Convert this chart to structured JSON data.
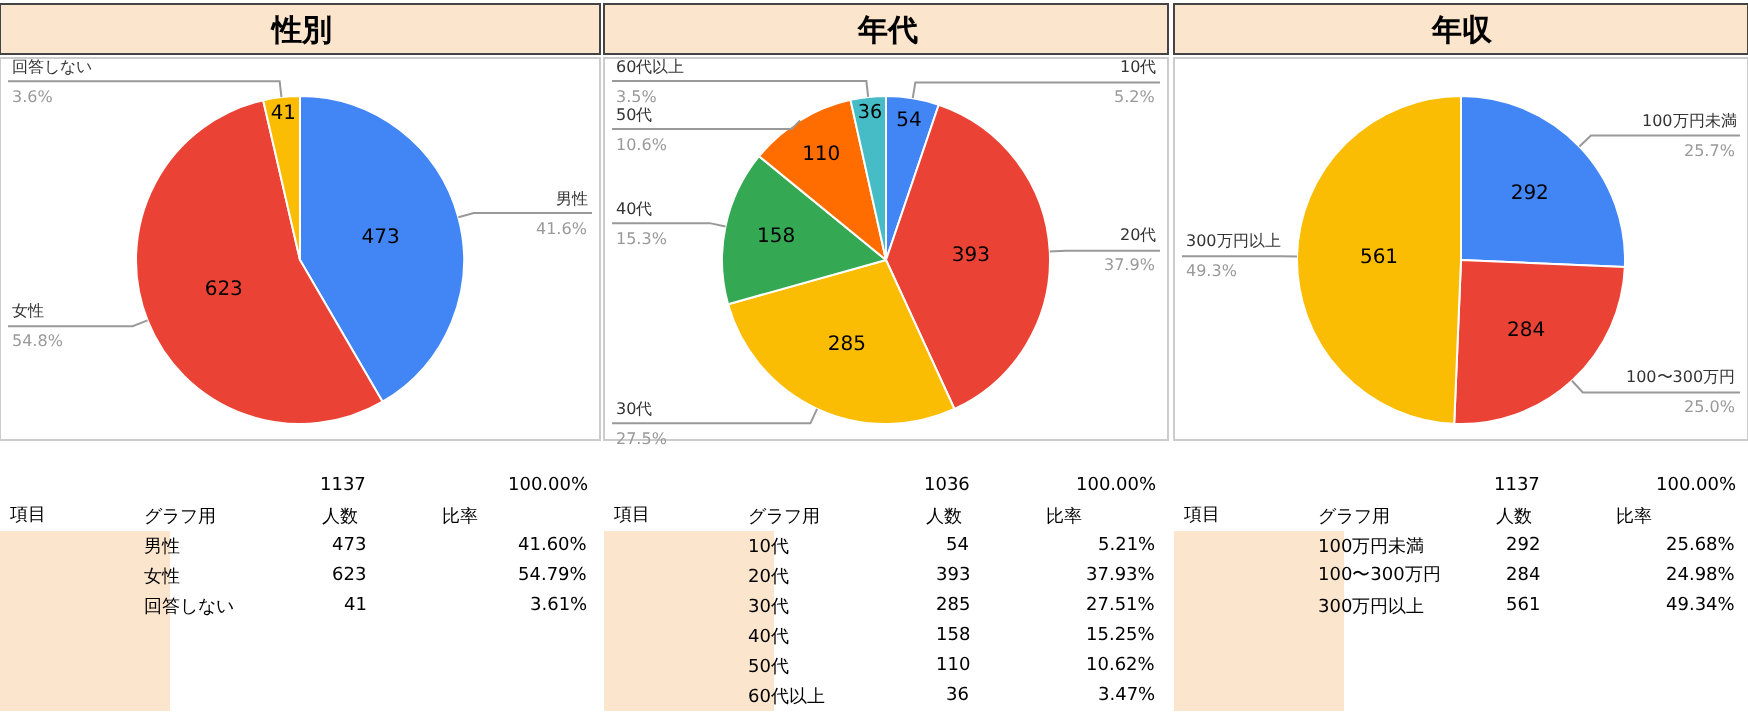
{
  "chart_data": [
    {
      "type": "pie",
      "title": "性別",
      "categories": [
        "男性",
        "女性",
        "回答しない"
      ],
      "values": [
        473,
        623,
        41
      ],
      "colors": [
        "#4285f4",
        "#ea4335",
        "#fbbc04"
      ],
      "data_labels": true,
      "annotations": [
        "41.6%",
        "54.8%",
        "3.6%",
        "1137",
        "100.00%",
        "項目",
        "グラフ用",
        "人数",
        "比率",
        "473",
        "623",
        "41",
        "41.60%",
        "54.79%",
        "3.61%"
      ]
    },
    {
      "type": "pie",
      "title": "年代",
      "categories": [
        "10代",
        "20代",
        "30代",
        "40代",
        "50代",
        "60代以上"
      ],
      "values": [
        54,
        393,
        285,
        158,
        110,
        36
      ],
      "colors": [
        "#4285f4",
        "#ea4335",
        "#fbbc04",
        "#34a853",
        "#ff6d01",
        "#46bdc6"
      ],
      "data_labels": true,
      "annotations": [
        "5.2%",
        "37.9%",
        "27.5%",
        "15.3%",
        "10.6%",
        "3.5%",
        "1036",
        "100.00%",
        "項目",
        "グラフ用",
        "人数",
        "比率",
        "54",
        "393",
        "285",
        "158",
        "110",
        "36",
        "5.21%",
        "37.93%",
        "27.51%",
        "15.25%",
        "10.62%",
        "3.47%"
      ]
    },
    {
      "type": "pie",
      "title": "年収",
      "categories": [
        "100万円未満",
        "100〜300万円",
        "300万円以上"
      ],
      "values": [
        292,
        284,
        561
      ],
      "colors": [
        "#4285f4",
        "#ea4335",
        "#fbbc04"
      ],
      "data_labels": true,
      "annotations": [
        "25.7%",
        "25.0%",
        "49.3%",
        "1137",
        "100.00%",
        "項目",
        "グラフ用",
        "人数",
        "比率",
        "292",
        "284",
        "561",
        "25.68%",
        "24.98%",
        "49.34%"
      ]
    }
  ]
}
